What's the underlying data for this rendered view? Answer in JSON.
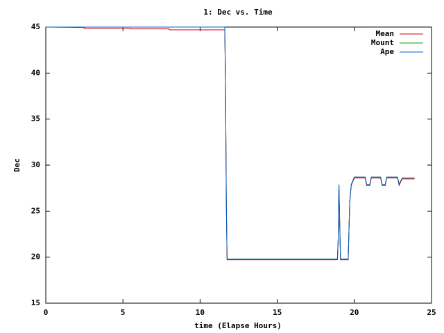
{
  "chart_data": {
    "type": "line",
    "title": "1: Dec vs. Time",
    "x_label": "time (Elapse Hours)",
    "y_label": "Dec",
    "x": [
      0,
      2.5,
      2.5,
      5.5,
      5.5,
      8,
      8,
      11.6,
      11.65,
      11.7,
      11.75,
      18.9,
      18.95,
      19.0,
      19.1,
      19.6,
      19.7,
      19.8,
      20.0,
      20.7,
      20.8,
      21.0,
      21.1,
      21.7,
      21.8,
      22.0,
      22.1,
      22.8,
      22.9,
      23.1,
      23.9
    ],
    "series": [
      {
        "name": "Mean",
        "color": "#cc0000",
        "values": [
          45,
          44.95,
          44.85,
          44.85,
          44.8,
          44.8,
          44.7,
          44.7,
          38.5,
          26,
          19.7,
          19.7,
          21.8,
          27.8,
          19.7,
          19.7,
          26,
          27.8,
          28.6,
          28.6,
          27.8,
          27.8,
          28.6,
          28.6,
          27.8,
          27.8,
          28.6,
          28.6,
          27.8,
          28.5,
          28.5
        ]
      },
      {
        "name": "Mount",
        "color": "#00a000",
        "values": [
          45,
          45,
          45,
          45,
          45,
          45,
          45,
          45,
          38.6,
          26.1,
          19.8,
          19.8,
          21.9,
          27.9,
          19.8,
          19.8,
          26.1,
          27.9,
          28.7,
          28.7,
          27.9,
          27.9,
          28.7,
          28.7,
          27.9,
          27.9,
          28.7,
          28.7,
          27.9,
          28.6,
          28.6
        ]
      },
      {
        "name": "Ape",
        "color": "#0060d0",
        "values": [
          45,
          45,
          45,
          45,
          45,
          45,
          45,
          45,
          38.6,
          26.1,
          19.8,
          19.8,
          21.9,
          27.9,
          19.8,
          19.8,
          26.1,
          27.9,
          28.7,
          28.7,
          27.9,
          27.9,
          28.7,
          28.7,
          27.9,
          27.9,
          28.7,
          28.7,
          27.9,
          28.6,
          28.6
        ]
      }
    ],
    "xlim": [
      0,
      25
    ],
    "xticks": [
      0,
      5,
      10,
      15,
      20,
      25
    ],
    "ylim": [
      15,
      45
    ],
    "yticks": [
      15,
      20,
      25,
      30,
      35,
      40,
      45
    ],
    "legend": "top-right"
  }
}
